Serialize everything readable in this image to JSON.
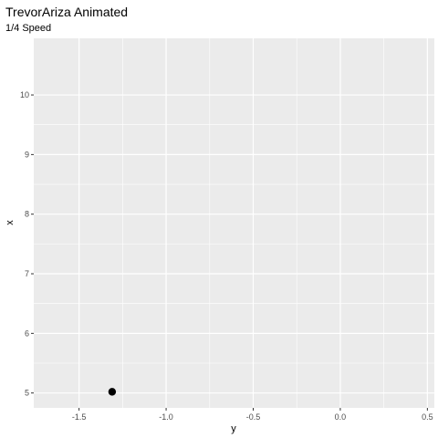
{
  "chart_data": {
    "type": "scatter",
    "title": "TrevorAriza Animated",
    "subtitle": "1/4 Speed",
    "xlabel": "y",
    "ylabel": "x",
    "xlim": [
      -1.76,
      0.54
    ],
    "ylim": [
      4.75,
      10.95
    ],
    "x_ticks": [
      -1.5,
      -1.0,
      -0.5,
      0.0,
      0.5
    ],
    "x_tick_labels": [
      "-1.5",
      "-1.0",
      "-0.5",
      "0.0",
      "0.5"
    ],
    "y_ticks": [
      5,
      6,
      7,
      8,
      9,
      10
    ],
    "y_tick_labels": [
      "5",
      "6",
      "7",
      "8",
      "9",
      "10"
    ],
    "grid": true,
    "points": [
      {
        "x": -1.31,
        "y": 5.02
      }
    ],
    "colors": {
      "panel": "#ebebeb",
      "grid": "#ffffff",
      "point": "#000000"
    }
  }
}
